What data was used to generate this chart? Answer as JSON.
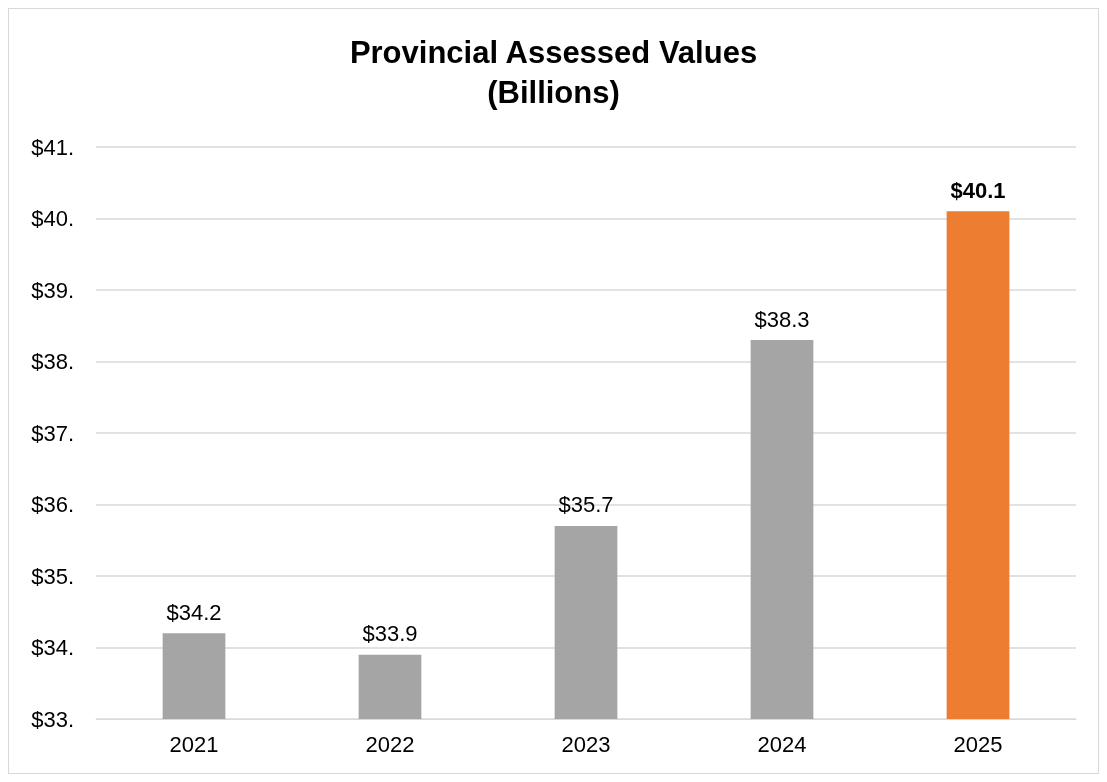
{
  "chart_data": {
    "type": "bar",
    "title": "Provincial Assessed Values\n(Billions)",
    "categories": [
      "2021",
      "2022",
      "2023",
      "2024",
      "2025"
    ],
    "values": [
      34.2,
      33.9,
      35.7,
      38.3,
      40.1
    ],
    "colors": [
      "#a5a5a5",
      "#a5a5a5",
      "#a5a5a5",
      "#a5a5a5",
      "#ed7d31"
    ],
    "value_labels": [
      "$34.2",
      "$33.9",
      "$35.7",
      "$38.3",
      "$40.1"
    ],
    "ylim": [
      33,
      41
    ],
    "yticks": [
      {
        "value": 33,
        "label": "$33."
      },
      {
        "value": 34,
        "label": "$34."
      },
      {
        "value": 35,
        "label": "$35."
      },
      {
        "value": 36,
        "label": "$36."
      },
      {
        "value": 37,
        "label": "$37."
      },
      {
        "value": 38,
        "label": "$38."
      },
      {
        "value": 39,
        "label": "$39."
      },
      {
        "value": 40,
        "label": "$40."
      },
      {
        "value": 41,
        "label": "$41."
      }
    ],
    "grid": "y"
  }
}
